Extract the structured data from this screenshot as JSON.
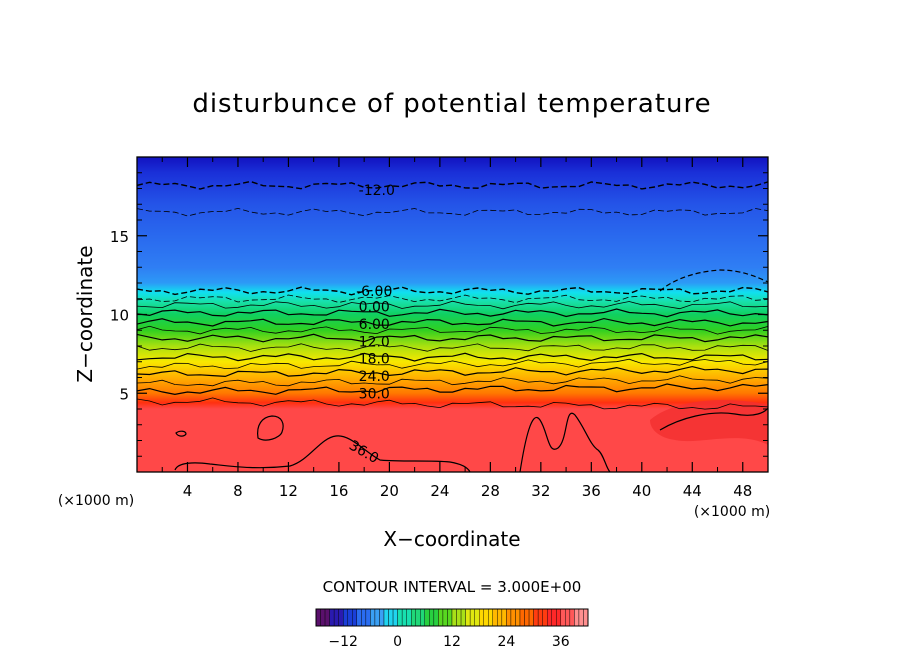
{
  "chart_data": {
    "type": "heatmap",
    "title": "disturbunce of potential temperature",
    "xlabel": "X−coordinate",
    "ylabel": "Z−coordinate",
    "x_unit": "(×1000 m)",
    "y_unit": "(×1000 m)",
    "xlim": [
      0,
      50
    ],
    "ylim": [
      0,
      20
    ],
    "x_ticks": [
      4,
      8,
      12,
      16,
      20,
      24,
      28,
      32,
      36,
      40,
      44,
      48
    ],
    "y_ticks": [
      5,
      10,
      15
    ],
    "contour_interval_text": "CONTOUR INTERVAL = 3.000E+00",
    "contour_labels": [
      {
        "text": "-12.0",
        "x": 19,
        "z": 17.9
      },
      {
        "text": "-6.00",
        "x": 18.8,
        "z": 11.5
      },
      {
        "text": "0.00",
        "x": 18.8,
        "z": 10.5
      },
      {
        "text": "6.00",
        "x": 18.8,
        "z": 9.4
      },
      {
        "text": "12.0",
        "x": 18.8,
        "z": 8.3
      },
      {
        "text": "18.0",
        "x": 18.8,
        "z": 7.2
      },
      {
        "text": "24.0",
        "x": 18.8,
        "z": 6.1
      },
      {
        "text": "30.0",
        "x": 18.8,
        "z": 5.0
      },
      {
        "text": "36.0",
        "x": 18,
        "z": 1.3
      }
    ],
    "colorbar": {
      "min": -18,
      "max": 42,
      "ticks": [
        -12,
        0,
        12,
        24,
        36
      ]
    }
  }
}
